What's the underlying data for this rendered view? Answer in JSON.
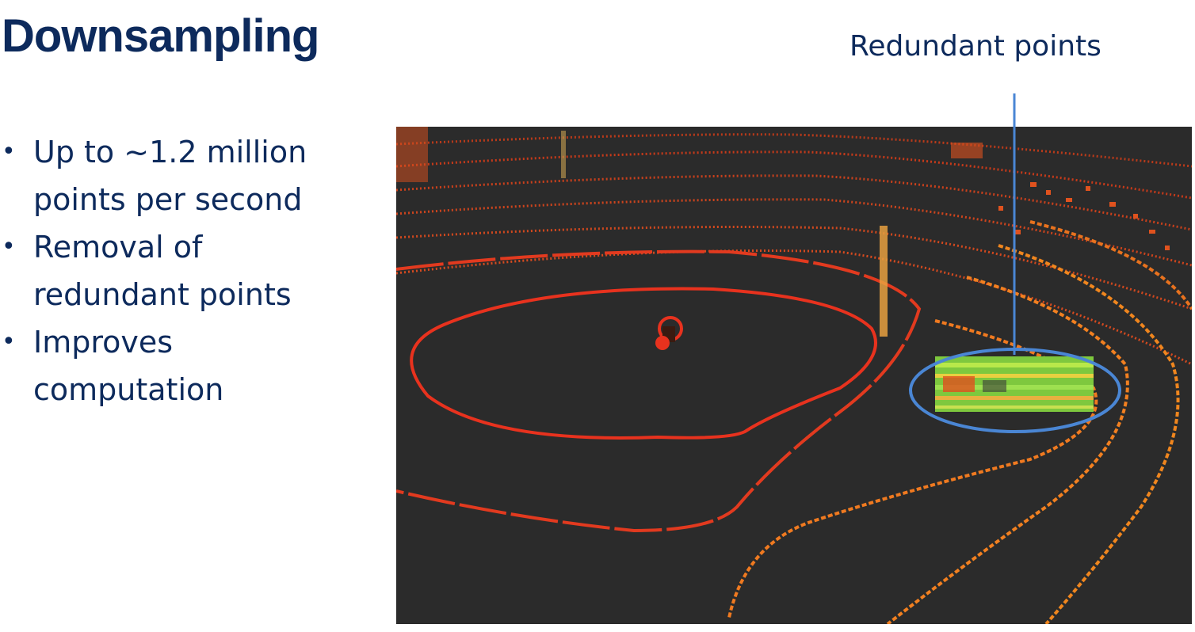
{
  "slide": {
    "title": "Downsampling",
    "bullets": [
      {
        "line1": "Up to ~1.2 million",
        "line2": "points per second"
      },
      {
        "line1": "Removal of",
        "line2": "redundant points"
      },
      {
        "line1": "Improves",
        "line2": "computation"
      }
    ],
    "callout": "Redundant points"
  },
  "colors": {
    "title_text": "#0d2a5c",
    "callout_line": "#4a86d4",
    "point_cloud_background": "#2b2b2b",
    "ring_red": "#e8321e",
    "ring_orange": "#f0821e",
    "redundant_points_green": "#8ee04a"
  },
  "icons": {
    "bullet": "bullet-dot-icon",
    "sensor": "lidar-sensor-icon"
  }
}
